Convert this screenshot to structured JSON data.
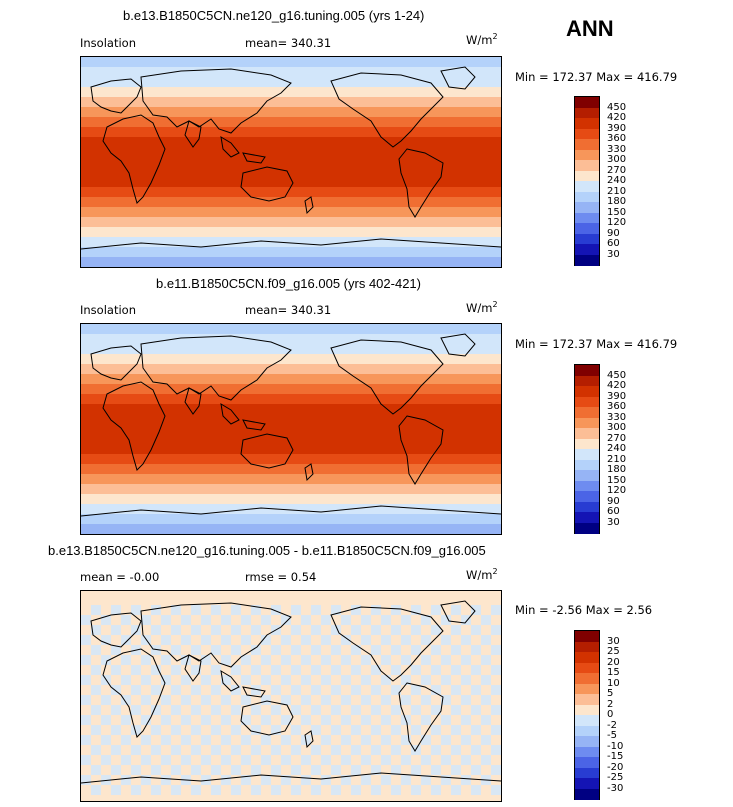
{
  "season": "ANN",
  "units": {
    "base": "W/m",
    "exp": "2"
  },
  "panels": [
    {
      "title": "b.e13.B1850C5CN.ne120_g16.tuning.005 (yrs 1-24)",
      "left_label": "Insolation",
      "stat1": "mean= 340.31",
      "stat2": "",
      "minmax": "Min = 172.37 Max = 416.79",
      "colorbar": {
        "labels": [
          "450",
          "420",
          "390",
          "360",
          "330",
          "300",
          "270",
          "240",
          "210",
          "180",
          "150",
          "120",
          "90",
          "60",
          "30"
        ],
        "colors": [
          "#800000",
          "#b41e00",
          "#d23200",
          "#e64b14",
          "#f06e32",
          "#f7965a",
          "#fcbe96",
          "#fde6cd",
          "#d2e6fa",
          "#b4d2fa",
          "#96b4f5",
          "#6e8cf0",
          "#4b64e6",
          "#283cd2",
          "#1414b4",
          "#000082"
        ]
      },
      "map_kind": "zonal"
    },
    {
      "title": "b.e11.B1850C5CN.f09_g16.005 (yrs 402-421)",
      "left_label": "Insolation",
      "stat1": "mean= 340.31",
      "stat2": "",
      "minmax": "Min = 172.37 Max = 416.79",
      "colorbar": {
        "labels": [
          "450",
          "420",
          "390",
          "360",
          "330",
          "300",
          "270",
          "240",
          "210",
          "180",
          "150",
          "120",
          "90",
          "60",
          "30"
        ],
        "colors": [
          "#800000",
          "#b41e00",
          "#d23200",
          "#e64b14",
          "#f06e32",
          "#f7965a",
          "#fcbe96",
          "#fde6cd",
          "#d2e6fa",
          "#b4d2fa",
          "#96b4f5",
          "#6e8cf0",
          "#4b64e6",
          "#283cd2",
          "#1414b4",
          "#000082"
        ]
      },
      "map_kind": "zonal"
    },
    {
      "title": "b.e13.B1850C5CN.ne120_g16.tuning.005 - b.e11.B1850C5CN.f09_g16.005",
      "left_label": "mean =  -0.00",
      "stat1": "rmse =   0.54",
      "stat2": "",
      "minmax": "Min =  -2.56 Max =   2.56",
      "colorbar": {
        "labels": [
          "30",
          "25",
          "20",
          "15",
          "10",
          "5",
          "2",
          "0",
          "-2",
          "-5",
          "-10",
          "-15",
          "-20",
          "-25",
          "-30"
        ],
        "colors": [
          "#800000",
          "#b41e00",
          "#d23200",
          "#e64b14",
          "#f06e32",
          "#f7965a",
          "#fcbe96",
          "#fde6cd",
          "#d2e6fa",
          "#b4d2fa",
          "#96b4f5",
          "#6e8cf0",
          "#4b64e6",
          "#283cd2",
          "#1414b4",
          "#000082"
        ]
      },
      "map_kind": "difference"
    }
  ],
  "zonal_band_colors": [
    "#b4d2fa",
    "#d2e6fa",
    "#d2e6fa",
    "#fde6cd",
    "#fcbe96",
    "#f7965a",
    "#f06e32",
    "#e64b14",
    "#d23200",
    "#d23200",
    "#d23200",
    "#d23200",
    "#d23200",
    "#e64b14",
    "#f06e32",
    "#f7965a",
    "#fcbe96",
    "#fde6cd",
    "#d2e6fa",
    "#b4d2fa",
    "#96b4f5"
  ],
  "difference_colors": {
    "base": "#fde6cd",
    "alt": "#d2e6fa"
  }
}
